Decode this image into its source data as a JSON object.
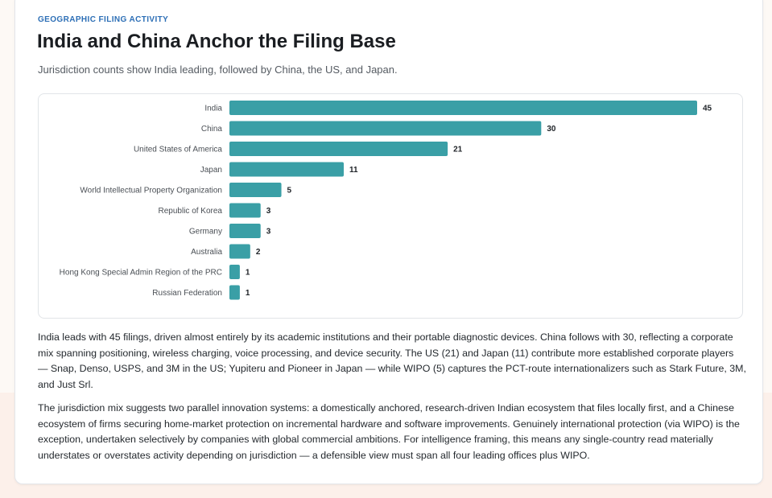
{
  "header": {
    "eyebrow": "GEOGRAPHIC FILING ACTIVITY",
    "title": "India and China Anchor the Filing Base",
    "subtitle": "Jurisdiction counts show India leading, followed by China, the US, and Japan."
  },
  "colors": {
    "bar": "#3a9fa6",
    "label": "#4a4f55",
    "value": "#1f2328"
  },
  "chart_data": {
    "type": "bar",
    "orientation": "horizontal",
    "categories": [
      "India",
      "China",
      "United States of America",
      "Japan",
      "World Intellectual Property Organization",
      "Republic of Korea",
      "Germany",
      "Australia",
      "Hong Kong Special Admin Region of the PRC",
      "Russian Federation"
    ],
    "values": [
      45,
      30,
      21,
      11,
      5,
      3,
      3,
      2,
      1,
      1
    ],
    "xlim": [
      0,
      45
    ],
    "grid": false,
    "legend": "none",
    "data_labels": true
  },
  "narrative": {
    "paragraphs": [
      "India leads with 45 filings, driven almost entirely by its academic institutions and their portable diagnostic devices. China follows with 30, reflecting a corporate mix spanning positioning, wireless charging, voice processing, and device security. The US (21) and Japan (11) contribute more established corporate players — Snap, Denso, USPS, and 3M in the US; Yupiteru and Pioneer in Japan — while WIPO (5) captures the PCT-route internationalizers such as Stark Future, 3M, and Just Srl.",
      "The jurisdiction mix suggests two parallel innovation systems: a domestically anchored, research-driven Indian ecosystem that files locally first, and a Chinese ecosystem of firms securing home-market protection on incremental hardware and software improvements. Genuinely international protection (via WIPO) is the exception, undertaken selectively by companies with global commercial ambitions. For intelligence framing, this means any single-country read materially understates or overstates activity depending on jurisdiction — a defensible view must span all four leading offices plus WIPO."
    ]
  }
}
